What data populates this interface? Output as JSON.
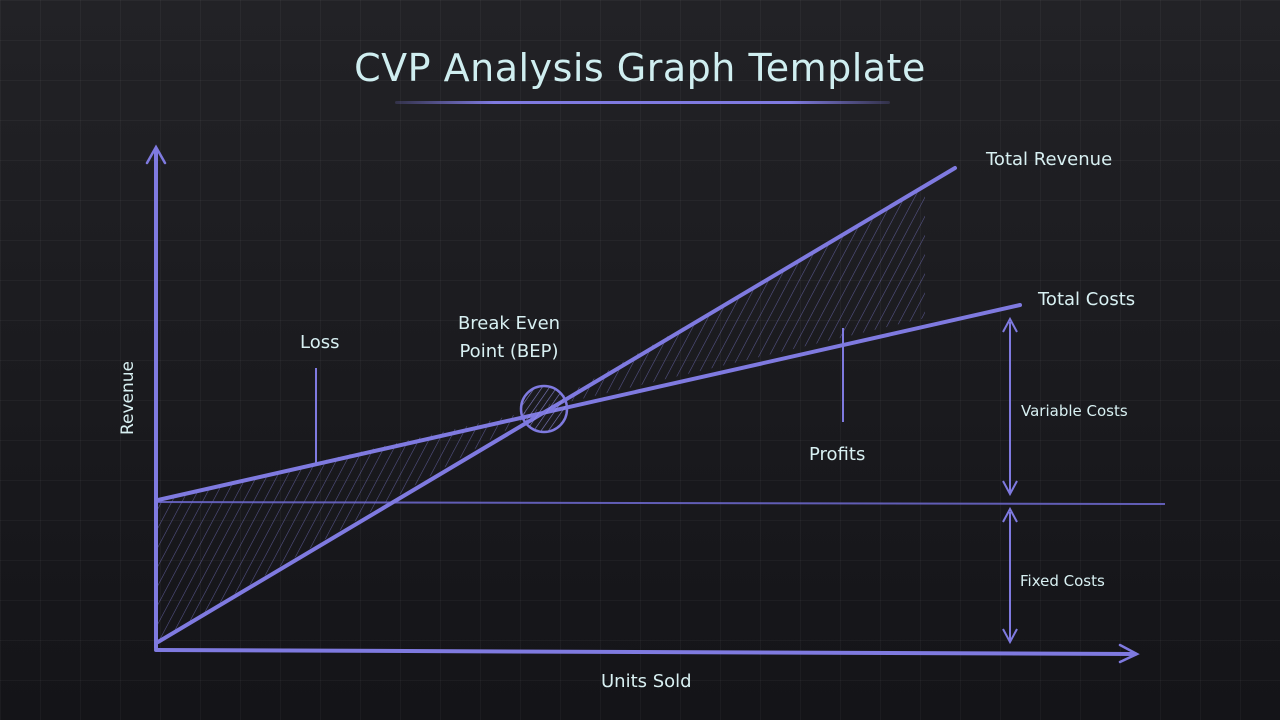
{
  "title": "CVP Analysis Graph Template",
  "axes": {
    "x_label": "Units Sold",
    "y_label": "Revenue"
  },
  "labels": {
    "total_revenue": "Total Revenue",
    "total_costs": "Total Costs",
    "loss": "Loss",
    "bep_line1": "Break Even",
    "bep_line2": "Point (BEP)",
    "profits": "Profits",
    "variable_costs": "Variable Costs",
    "fixed_costs": "Fixed Costs"
  },
  "colors": {
    "accent": "#7f7ae0",
    "text": "#d8f0f2",
    "title": "#cfeef0",
    "background": "#1c1c20"
  }
}
